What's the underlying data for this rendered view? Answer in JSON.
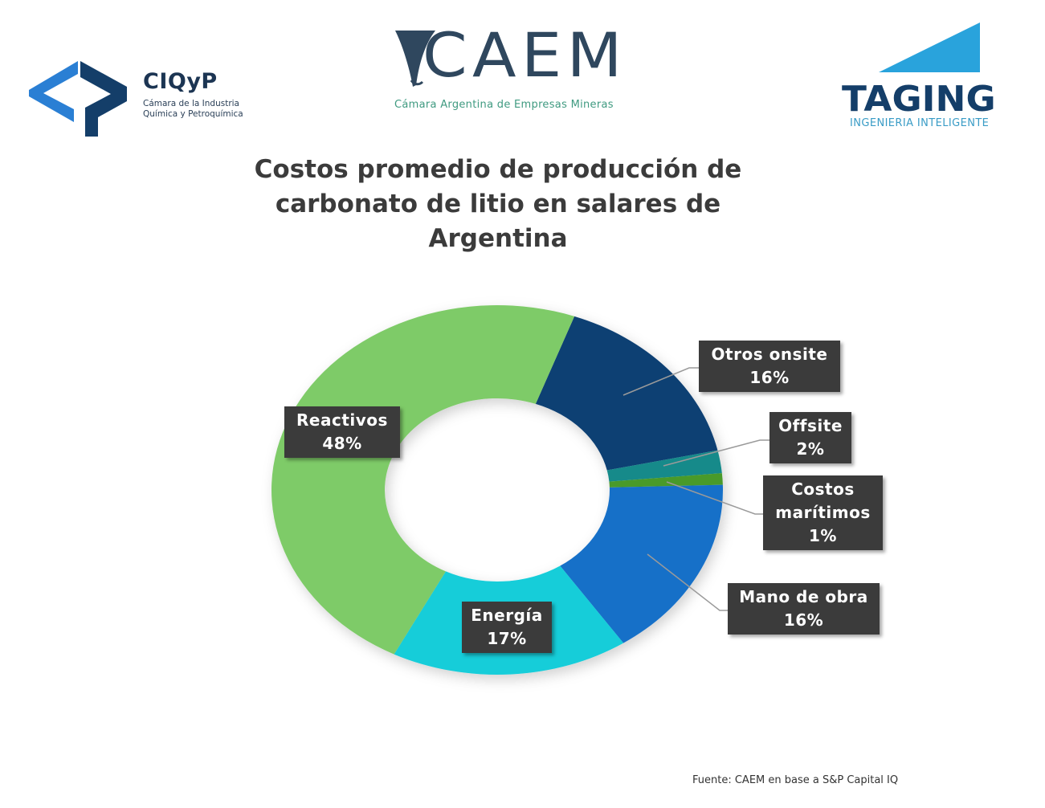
{
  "logos": {
    "ciqyp": {
      "name": "CIQyP",
      "subtitle_line1": "Cámara de la Industria",
      "subtitle_line2": "Química y Petroquímica",
      "colors": {
        "light": "#2a7fd4",
        "dark": "#143e69"
      }
    },
    "caem": {
      "name": "CAEM",
      "subtitle": "Cámara Argentina de Empresas Mineras",
      "colors": {
        "mark": "#2f475e",
        "subtitle": "#3f9a80"
      }
    },
    "taging": {
      "name": "TAGING",
      "subtitle": "INGENIERIA INTELIGENTE",
      "colors": {
        "triangle": "#29a3dc",
        "word": "#143e69",
        "subtitle": "#3a9cc6"
      }
    }
  },
  "title": {
    "line1": "Costos promedio de producción de",
    "line2": "carbonato de litio en salares de",
    "line3": "Argentina"
  },
  "source": "Fuente: CAEM en base a S&P Capital IQ",
  "chart_data": {
    "type": "pie",
    "subtype": "donut",
    "title": "Costos promedio de producción de carbonato de litio en salares de Argentina",
    "start_angle_deg": 20,
    "direction": "clockwise",
    "unit": "%",
    "categories": [
      "Otros onsite",
      "Offsite",
      "Costos marítimos",
      "Mano de obra",
      "Energía",
      "Reactivos"
    ],
    "values": [
      16,
      2,
      1,
      16,
      17,
      48
    ],
    "labels": [
      {
        "name": "Otros onsite",
        "value": "16%"
      },
      {
        "name": "Offsite",
        "value": "2%"
      },
      {
        "name": "Costos marítimos",
        "name_line1": "Costos",
        "name_line2": "marítimos",
        "value": "1%"
      },
      {
        "name": "Mano de obra",
        "value": "16%"
      },
      {
        "name": "Energía",
        "value": "17%"
      },
      {
        "name": "Reactivos",
        "value": "48%"
      }
    ],
    "colors": [
      "#0d3f73",
      "#138a8a",
      "#4a9a2a",
      "#1570c8",
      "#14cdd9",
      "#7ecb68"
    ],
    "label_box_color": "#3b3b3b",
    "legend": "none",
    "source": "Fuente: CAEM en base a S&P Capital IQ"
  }
}
